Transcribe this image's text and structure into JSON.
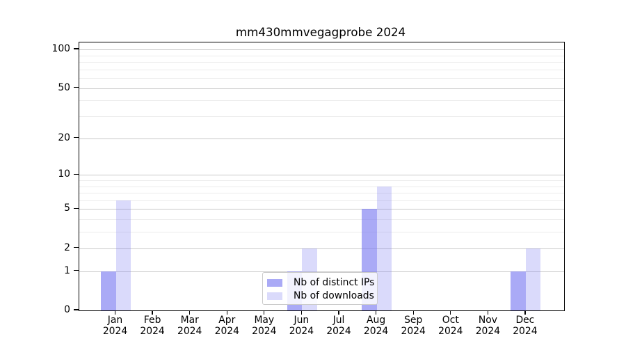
{
  "title": "mm430mmvegagprobe 2024",
  "colors": {
    "bar_ips": "rgba(120,120,240,0.63)",
    "bar_downloads": "rgba(120,120,240,0.27)",
    "grid_major": "#c9c9c9",
    "grid_minor": "#ececec",
    "axis": "#000000",
    "text": "#000000",
    "legend_border": "#cccccc"
  },
  "legend": {
    "items": [
      {
        "label": "Nb of distinct IPs",
        "series_key": "ips"
      },
      {
        "label": "Nb of downloads",
        "series_key": "downloads"
      }
    ]
  },
  "chart_data": {
    "type": "bar",
    "title": "mm430mmvegagprobe 2024",
    "y_scale": "log1p",
    "categories": [
      "Jan",
      "Feb",
      "Mar",
      "Apr",
      "May",
      "Jun",
      "Jul",
      "Aug",
      "Sep",
      "Oct",
      "Nov",
      "Dec"
    ],
    "year_label": "2024",
    "series": [
      {
        "name": "Nb of distinct IPs",
        "key": "ips",
        "values": [
          1,
          0,
          0,
          0,
          0,
          1,
          0,
          5,
          0,
          0,
          0,
          1
        ]
      },
      {
        "name": "Nb of downloads",
        "key": "downloads",
        "values": [
          6,
          0,
          0,
          0,
          0,
          2,
          0,
          8,
          0,
          0,
          0,
          2
        ]
      }
    ],
    "yticks": [
      0,
      1,
      2,
      5,
      10,
      20,
      50,
      100
    ],
    "minor_yticks": [
      3,
      4,
      6,
      7,
      8,
      9,
      30,
      40,
      60,
      70,
      80,
      90
    ],
    "ylim": [
      0,
      113
    ],
    "xlabel": "",
    "ylabel": "",
    "grid": "both",
    "legend_position": "lower-center"
  }
}
